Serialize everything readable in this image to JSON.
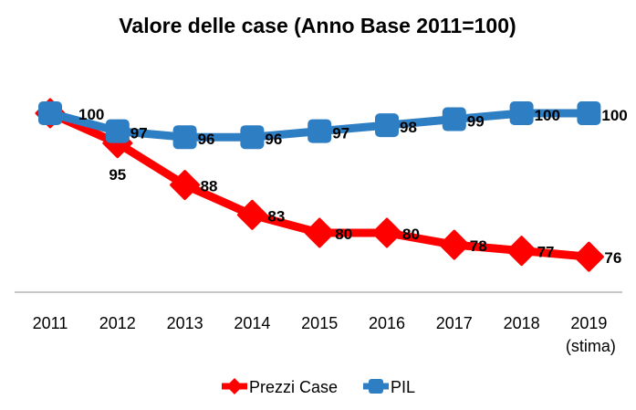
{
  "chart_data": {
    "type": "line",
    "title": "Valore delle case (Anno Base 2011=100)",
    "xlabel": "",
    "ylabel": "",
    "categories": [
      "2011",
      "2012",
      "2013",
      "2014",
      "2015",
      "2016",
      "2017",
      "2018",
      "2019"
    ],
    "category_sublabels": [
      "",
      "",
      "",
      "",
      "",
      "",
      "",
      "",
      "(stima)"
    ],
    "ylim": [
      70,
      102
    ],
    "grid": false,
    "legend_position": "bottom",
    "series": [
      {
        "name": "Prezzi Case",
        "color": "#ff0000",
        "marker": "diamond",
        "values": [
          100,
          95,
          88,
          83,
          80,
          80,
          78,
          77,
          76
        ],
        "labels": [
          "",
          "95",
          "88",
          "83",
          "80",
          "80",
          "78",
          "77",
          "76"
        ]
      },
      {
        "name": "PIL",
        "color": "#2e7ec4",
        "marker": "square",
        "values": [
          100,
          97,
          96,
          96,
          97,
          98,
          99,
          100,
          100
        ],
        "labels": [
          "100",
          "97",
          "96",
          "96",
          "97",
          "98",
          "99",
          "100",
          "100"
        ]
      }
    ]
  }
}
